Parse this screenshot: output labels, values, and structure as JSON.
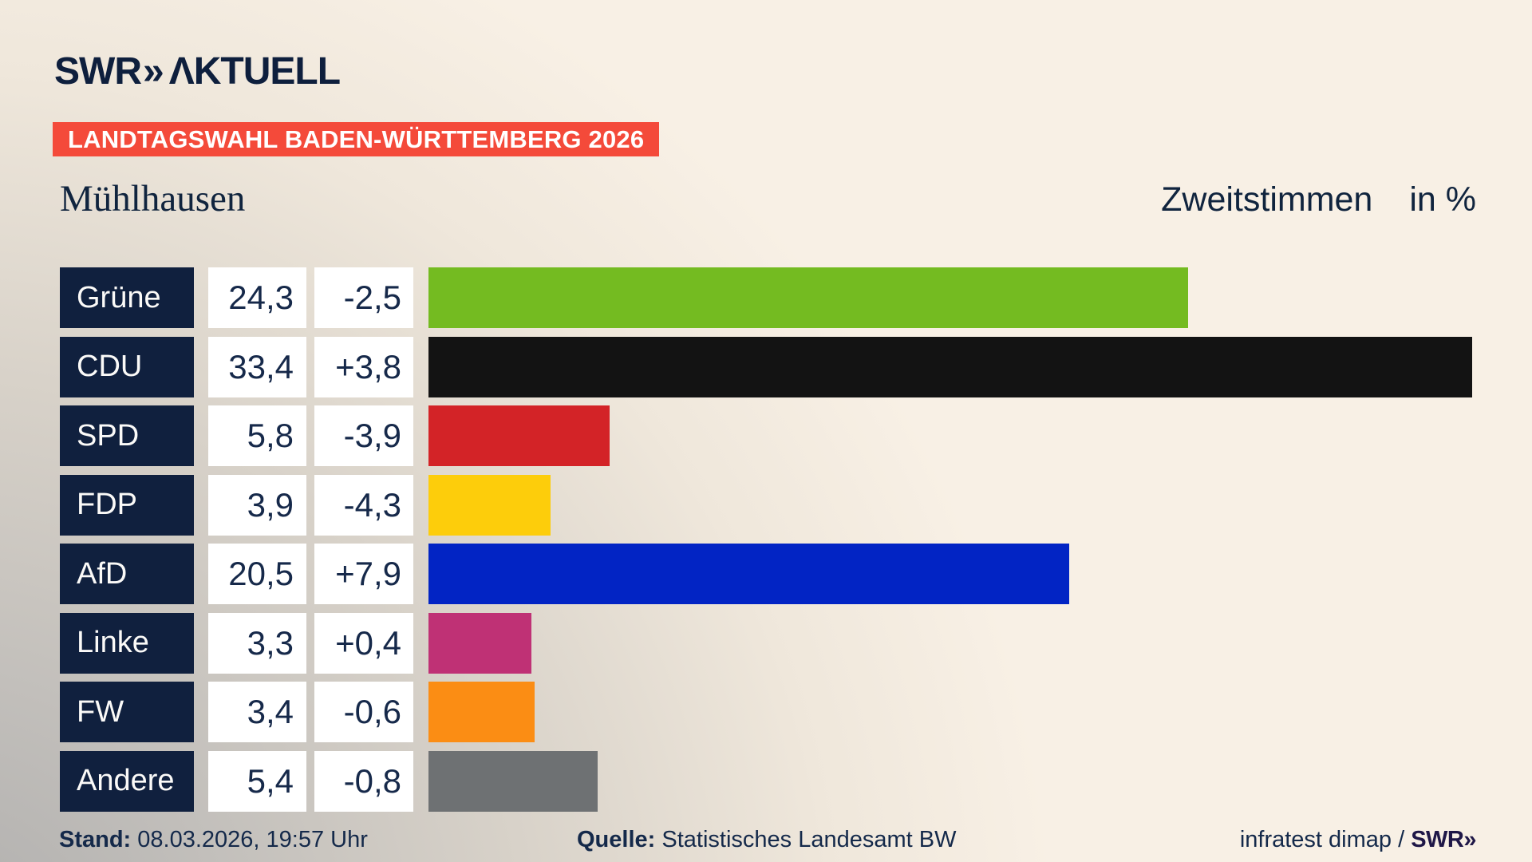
{
  "header": {
    "logo_swr": "SWR",
    "logo_chevrons": "»",
    "logo_product": "ΛKTUELL",
    "badge": "LANDTAGSWAHL BADEN-WÜRTTEMBERG 2026"
  },
  "title": {
    "place": "Mühlhausen",
    "measure": "Zweitstimmen",
    "unit": "in %"
  },
  "chart_data": {
    "type": "bar",
    "orientation": "horizontal",
    "title": "Mühlhausen — Zweitstimmen in %",
    "categories": [
      "Grüne",
      "CDU",
      "SPD",
      "FDP",
      "AfD",
      "Linke",
      "FW",
      "Andere"
    ],
    "values": [
      24.3,
      33.4,
      5.8,
      3.9,
      20.5,
      3.3,
      3.4,
      5.4
    ],
    "diffs": [
      -2.5,
      3.8,
      -3.9,
      -4.3,
      7.9,
      0.4,
      -0.6,
      -0.8
    ],
    "value_labels": [
      "24,3",
      "33,4",
      "5,8",
      "3,9",
      "20,5",
      "3,3",
      "3,4",
      "5,4"
    ],
    "diff_labels": [
      "-2,5",
      "+3,8",
      "-3,9",
      "-4,3",
      "+7,9",
      "+0,4",
      "-0,6",
      "-0,8"
    ],
    "bar_colors": [
      "#74bb21",
      "#131313",
      "#d32327",
      "#fdcd0b",
      "#0224c4",
      "#bf3175",
      "#fb8d14",
      "#6e7173"
    ],
    "xlim": [
      0,
      33.4
    ],
    "grid": false,
    "legend": "none"
  },
  "footer": {
    "stand_label": "Stand:",
    "stand_value": " 08.03.2026, 19:57 Uhr",
    "quelle_label": "Quelle:",
    "quelle_value": " Statistisches Landesamt BW",
    "credit_text": "infratest dimap / ",
    "credit_logo": "SWR»"
  },
  "colors": {
    "background_cream": "#f8f0e5",
    "background_gray": "#aeadac",
    "badge_red": "#f44a3a",
    "navy_box": "#10203e",
    "navy_text": "#16294a",
    "white_cell": "#ffffff"
  }
}
